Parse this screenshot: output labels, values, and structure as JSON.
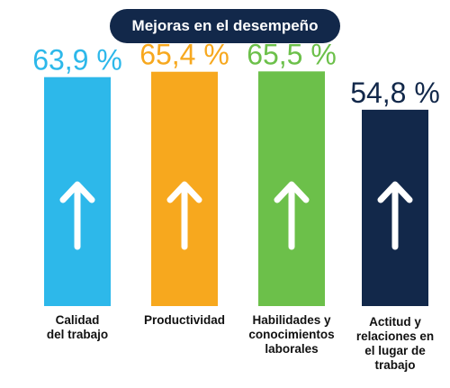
{
  "chart_data": {
    "type": "bar",
    "title": "Mejoras en el desempeño",
    "unit": "%",
    "categories": [
      "Calidad\ndel trabajo",
      "Productividad",
      "Habilidades y\nconocimientos\nlaborales",
      "Actitud y\nrelaciones en\nel lugar de\ntrabajo"
    ],
    "values": [
      63.9,
      65.4,
      65.5,
      54.8
    ],
    "value_labels": [
      "63,9 %",
      "65,4 %",
      "65,5 %",
      "54,8 %"
    ],
    "colors": [
      "#2db8ea",
      "#f7a81e",
      "#6cc04a",
      "#12284a"
    ],
    "bar_icon": "arrow-up-icon",
    "grid": false,
    "legend": "none"
  }
}
